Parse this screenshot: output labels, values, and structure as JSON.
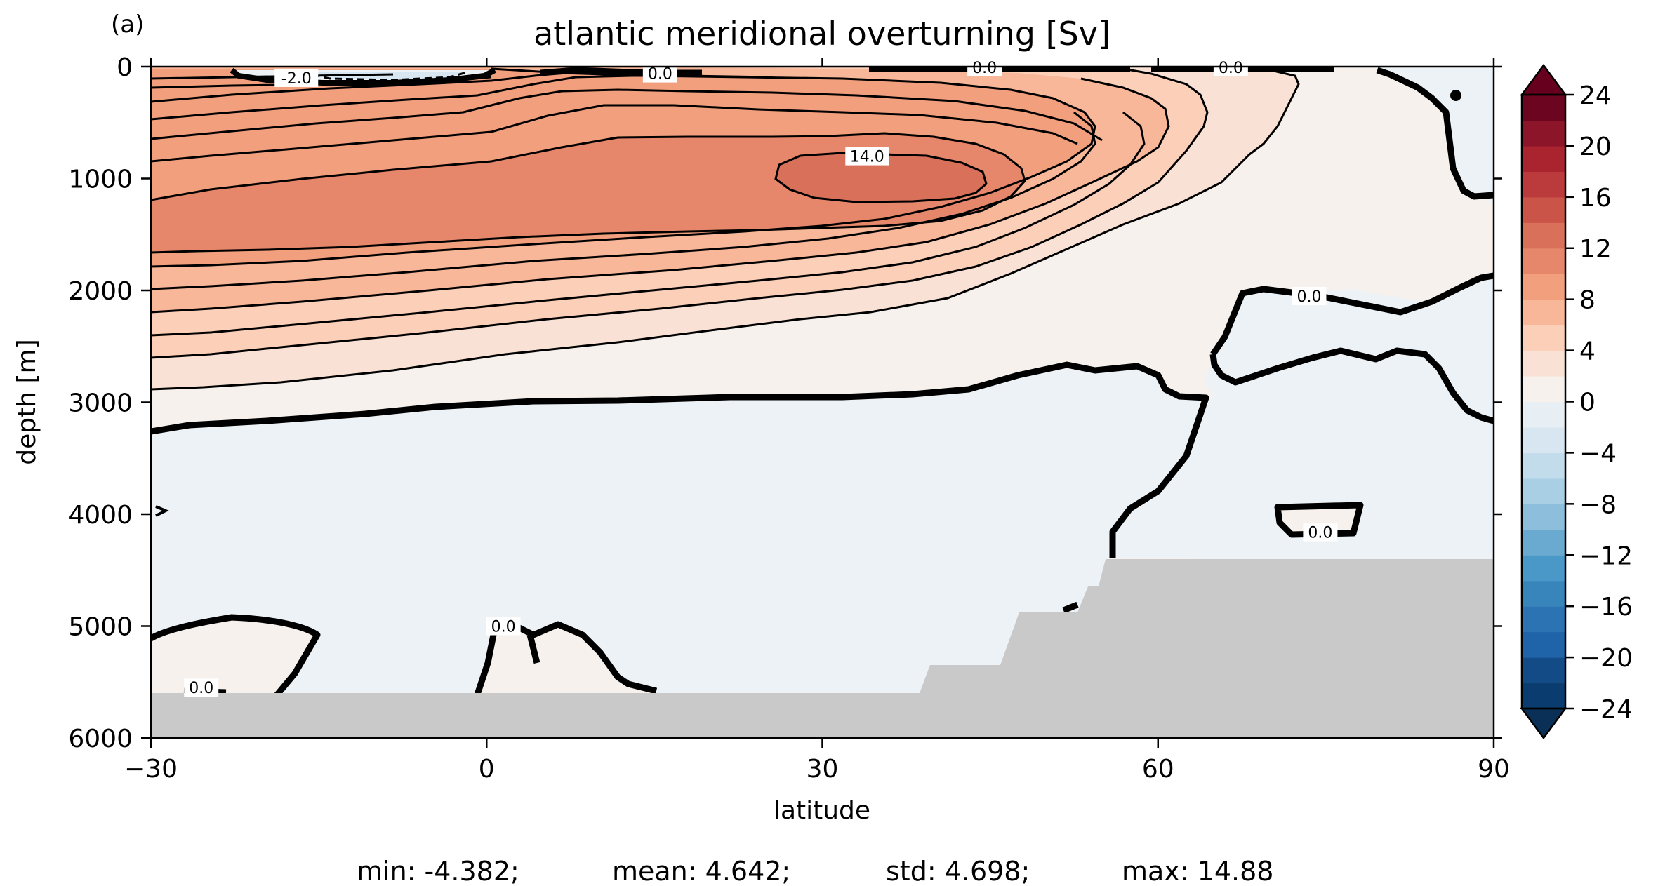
{
  "panel_label": "(a)",
  "chart_data": {
    "type": "contourf",
    "title": "atlantic meridional overturning [Sv]",
    "xlabel": "latitude",
    "ylabel": "depth [m]",
    "xlim": [
      -30,
      90
    ],
    "ylim": [
      6000,
      0
    ],
    "y_inverted": true,
    "xticks": [
      -30,
      0,
      30,
      60,
      90
    ],
    "xtick_labels": [
      "−30",
      "0",
      "30",
      "60",
      "90"
    ],
    "yticks": [
      0,
      1000,
      2000,
      3000,
      4000,
      5000,
      6000
    ],
    "ytick_labels": [
      "0",
      "1000",
      "2000",
      "3000",
      "4000",
      "5000",
      "6000"
    ],
    "colormap": "RdBu_r",
    "colorbar": {
      "levels": [
        -24,
        -22,
        -20,
        -18,
        -16,
        -14,
        -12,
        -10,
        -8,
        -6,
        -4,
        -2,
        0,
        2,
        4,
        6,
        8,
        10,
        12,
        14,
        16,
        18,
        20,
        22,
        24
      ],
      "extend": "both",
      "ticks": [
        24,
        20,
        16,
        12,
        8,
        4,
        0,
        -4,
        -8,
        -12,
        -16,
        -20,
        -24
      ],
      "tick_labels": [
        "24",
        "20",
        "16",
        "12",
        "8",
        "4",
        "0",
        "−4",
        "−8",
        "−12",
        "−16",
        "−20",
        "−24"
      ],
      "colors": [
        "#0b3c6f",
        "#134b87",
        "#1f63a8",
        "#2c73b4",
        "#3885bc",
        "#4a98c8",
        "#6aa9d0",
        "#8dbfdd",
        "#a8cfe4",
        "#c3dcec",
        "#d7e6f0",
        "#e8eff4",
        "#f6f1ec",
        "#f9e2d5",
        "#fbcfb8",
        "#f8b799",
        "#f29f7e",
        "#e6866a",
        "#d9705a",
        "#cb5449",
        "#bb3a3c",
        "#a9242f",
        "#8c1529",
        "#6c0520"
      ],
      "extend_colors": {
        "under": "#0a3057",
        "over": "#67001f"
      }
    },
    "contour_labels": [
      {
        "text": "-2.0",
        "x": -17,
        "y": 100
      },
      {
        "text": "0.0",
        "x": 15.5,
        "y": 60
      },
      {
        "text": "14.0",
        "x": 34,
        "y": 800
      },
      {
        "text": "0.0",
        "x": 44.5,
        "y": 5
      },
      {
        "text": "0.0",
        "x": 66.5,
        "y": 5
      },
      {
        "text": "0.0",
        "x": 73.5,
        "y": 2050
      },
      {
        "text": "0.0",
        "x": 74.5,
        "y": 4160
      },
      {
        "text": "0.0",
        "x": 1.5,
        "y": 5000
      },
      {
        "text": "0.0",
        "x": -25.5,
        "y": 5550
      }
    ],
    "stats": {
      "min": "min: -4.382;",
      "mean": "mean: 4.642;",
      "std": "std: 4.698;",
      "max": "max: 14.88"
    }
  }
}
